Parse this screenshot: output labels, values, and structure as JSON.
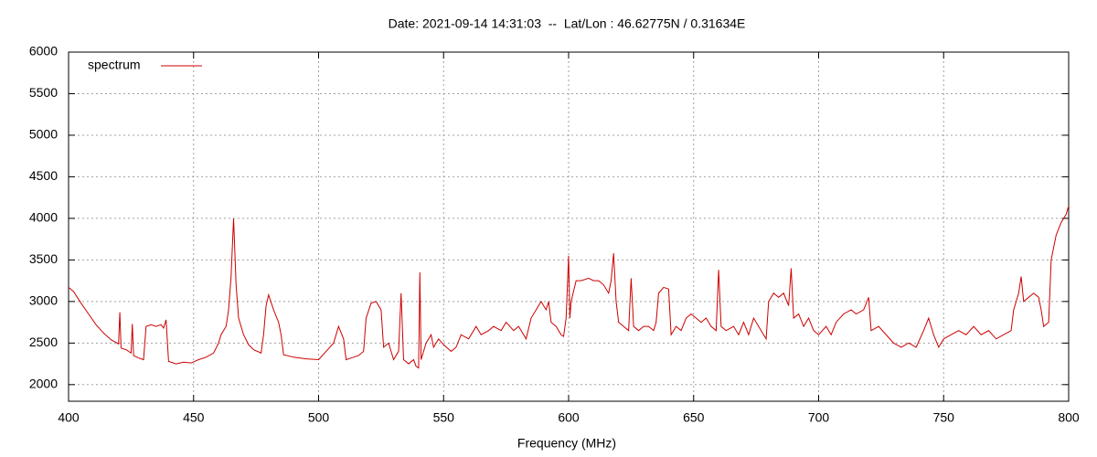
{
  "chart_data": {
    "type": "line",
    "title": "Date: 2021-09-14 14:31:03  --  Lat/Lon : 46.62775N / 0.31634E",
    "xlabel": "Frequency (MHz)",
    "xlim": [
      400,
      800
    ],
    "xticks": [
      400,
      450,
      500,
      550,
      600,
      650,
      700,
      750,
      800
    ],
    "ylim": [
      1800,
      6000
    ],
    "yticks": [
      2000,
      2500,
      3000,
      3500,
      4000,
      4500,
      5000,
      5500,
      6000
    ],
    "grid": true,
    "legend": "top-left",
    "x": [
      400,
      402,
      405,
      408,
      411,
      414,
      417,
      420,
      420.5,
      421,
      423,
      425,
      425.5,
      426,
      428,
      430,
      431,
      433,
      435,
      437,
      438,
      439,
      440,
      443,
      446,
      449,
      452,
      455,
      458,
      460,
      461,
      463,
      464,
      465,
      466,
      467,
      468,
      470,
      472,
      474,
      477,
      478,
      479,
      480,
      482,
      484,
      485,
      486,
      490,
      495,
      500,
      503,
      506,
      508,
      510,
      511,
      513,
      516,
      518,
      519,
      521,
      523,
      525,
      526,
      528,
      530,
      532,
      533,
      534,
      536,
      538,
      539,
      540,
      540.5,
      541,
      543,
      545,
      546,
      548,
      550,
      553,
      555,
      557,
      560,
      563,
      565,
      568,
      570,
      573,
      575,
      578,
      580,
      583,
      585,
      587,
      589,
      591,
      592,
      593,
      595,
      597,
      598,
      599,
      600,
      600.5,
      601,
      603,
      605,
      608,
      610,
      612,
      614,
      616,
      617,
      618,
      619,
      620,
      622,
      624,
      625,
      626,
      628,
      630,
      632,
      634,
      635,
      636,
      638,
      640,
      641,
      643,
      645,
      647,
      649,
      651,
      653,
      655,
      657,
      659,
      660,
      661,
      663,
      666,
      668,
      670,
      672,
      674,
      676,
      678,
      679,
      680,
      682,
      684,
      686,
      688,
      689,
      690,
      692,
      694,
      696,
      698,
      700,
      703,
      705,
      707,
      710,
      713,
      715,
      718,
      720,
      721,
      724,
      727,
      730,
      733,
      736,
      739,
      742,
      744,
      746,
      748,
      750,
      753,
      756,
      759,
      762,
      765,
      768,
      771,
      774,
      777,
      778,
      780,
      781,
      782,
      784,
      786,
      788,
      789,
      790,
      792,
      793,
      795,
      797,
      799,
      800
    ],
    "series": [
      {
        "name": "spectrum",
        "color": "#cc0000",
        "values": [
          3170,
          3120,
          2980,
          2850,
          2720,
          2620,
          2540,
          2490,
          2870,
          2440,
          2420,
          2380,
          2730,
          2350,
          2320,
          2300,
          2700,
          2720,
          2700,
          2720,
          2680,
          2780,
          2280,
          2250,
          2270,
          2260,
          2300,
          2330,
          2380,
          2500,
          2600,
          2700,
          2900,
          3300,
          4000,
          3200,
          2800,
          2600,
          2480,
          2420,
          2380,
          2600,
          2950,
          3080,
          2900,
          2750,
          2600,
          2360,
          2330,
          2310,
          2300,
          2400,
          2500,
          2700,
          2550,
          2300,
          2320,
          2350,
          2400,
          2800,
          2980,
          3000,
          2900,
          2450,
          2500,
          2300,
          2400,
          3100,
          2300,
          2250,
          2300,
          2220,
          2200,
          3350,
          2300,
          2500,
          2600,
          2450,
          2550,
          2480,
          2400,
          2450,
          2600,
          2550,
          2700,
          2600,
          2650,
          2700,
          2650,
          2750,
          2650,
          2700,
          2550,
          2800,
          2900,
          3000,
          2900,
          3000,
          2750,
          2700,
          2600,
          2580,
          2800,
          3550,
          2800,
          3000,
          3250,
          3250,
          3280,
          3250,
          3250,
          3200,
          3100,
          3250,
          3580,
          3000,
          2750,
          2700,
          2650,
          3280,
          2700,
          2650,
          2700,
          2700,
          2650,
          2750,
          3100,
          3170,
          3150,
          2600,
          2700,
          2650,
          2800,
          2850,
          2800,
          2750,
          2800,
          2700,
          2650,
          3380,
          2700,
          2650,
          2700,
          2600,
          2750,
          2600,
          2800,
          2700,
          2600,
          2550,
          3000,
          3100,
          3050,
          3100,
          2950,
          3400,
          2800,
          2850,
          2700,
          2800,
          2650,
          2600,
          2700,
          2600,
          2750,
          2850,
          2900,
          2850,
          2900,
          3050,
          2650,
          2700,
          2600,
          2500,
          2450,
          2500,
          2450,
          2650,
          2800,
          2600,
          2450,
          2550,
          2600,
          2650,
          2600,
          2700,
          2600,
          2650,
          2550,
          2600,
          2650,
          2900,
          3100,
          3300,
          3000,
          3050,
          3100,
          3050,
          2900,
          2700,
          2750,
          3500,
          3800,
          3950,
          4050,
          4150
        ]
      }
    ]
  }
}
